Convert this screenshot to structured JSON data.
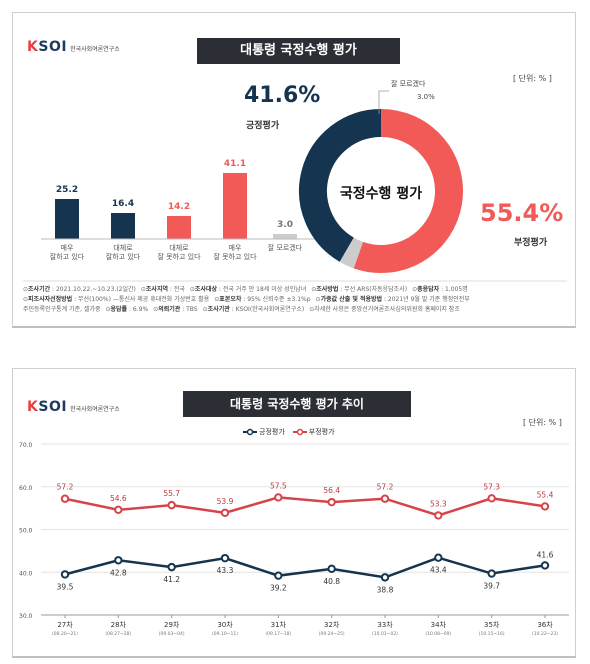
{
  "logo": {
    "mark_k": "K",
    "mark_rest": "SOI",
    "text": "한국사회여론연구소"
  },
  "colors": {
    "navy": "#14344f",
    "red": "#f25a58",
    "gray": "#cccccc",
    "red_line": "#d6444a"
  },
  "panel1": {
    "title": "대통령 국정수행 평가",
    "unit": "[ 단위: % ]",
    "donut": {
      "center_label": "국정수행 평가",
      "positive_pct": "41.6%",
      "positive_label": "긍정평가",
      "negative_pct": "55.4%",
      "negative_label": "부정평가",
      "unknown_label": "잘 모르겠다",
      "unknown_value": "3.0%",
      "values": [
        41.6,
        55.4,
        3.0
      ]
    },
    "bars": [
      {
        "value": 25.2,
        "label": "25.2",
        "category": "매우\n잘하고 있다",
        "color": "navy"
      },
      {
        "value": 16.4,
        "label": "16.4",
        "category": "대체로\n잘하고 있다",
        "color": "navy"
      },
      {
        "value": 14.2,
        "label": "14.2",
        "category": "대체로\n잘 못하고 있다",
        "color": "red"
      },
      {
        "value": 41.1,
        "label": "41.1",
        "category": "매우\n잘 못하고 있다",
        "color": "red"
      },
      {
        "value": 3.0,
        "label": "3.0",
        "category": "잘 모르겠다",
        "color": "gray"
      }
    ],
    "footnote": {
      "line1": [
        {
          "k": "조사기간",
          "v": " : 2021.10.22.~10.23.(2일간)"
        },
        {
          "k": "조사지역",
          "v": " : 전국"
        },
        {
          "k": "조사대상",
          "v": " : 전국 거주 만 18세 이상 성인남녀"
        },
        {
          "k": "조사방법",
          "v": " : 무선 ARS(자동응답조사)"
        },
        {
          "k": "총응답자",
          "v": " : 1,005명"
        }
      ],
      "line2": [
        {
          "k": "피조사자선정방법",
          "v": " : 무선(100%) —통신사 제공 휴대전화 가상번호 활용"
        },
        {
          "k": "표본오차",
          "v": " : 95% 신뢰수준 ±3.1%p"
        },
        {
          "k": "가중값 산출 및 적용방법",
          "v": " : 2021년 9월 말 기준 행정안전부"
        }
      ],
      "line3": [
        {
          "k": "",
          "v": "주민등록인구통계 기준, 셀가중"
        },
        {
          "k": "응답률",
          "v": " : 6.9%"
        },
        {
          "k": "의뢰기관",
          "v": " : TBS"
        },
        {
          "k": "조사기관",
          "v": " : KSOI(한국사회여론연구소)"
        },
        {
          "k": "",
          "v": "자세한 사항은 중앙선거여론조사심의위원회 홈페이지 참조"
        }
      ]
    }
  },
  "panel2": {
    "title": "대통령 국정수행 평가 추이",
    "unit": "[ 단위: % ]",
    "legend": {
      "positive": "긍정평가",
      "negative": "부정평가"
    }
  },
  "chart_data": [
    {
      "type": "bar",
      "title": "대통령 국정수행 평가",
      "categories": [
        "매우 잘하고 있다",
        "대체로 잘하고 있다",
        "대체로 잘 못하고 있다",
        "매우 잘 못하고 있다",
        "잘 모르겠다"
      ],
      "values": [
        25.2,
        16.4,
        14.2,
        41.1,
        3.0
      ],
      "ylim": [
        0,
        45
      ]
    },
    {
      "type": "pie",
      "title": "국정수행 평가",
      "categories": [
        "긍정평가",
        "부정평가",
        "잘 모르겠다"
      ],
      "values": [
        41.6,
        55.4,
        3.0
      ]
    },
    {
      "type": "line",
      "title": "대통령 국정수행 평가 추이",
      "categories": [
        "27차",
        "28차",
        "29차",
        "30차",
        "31차",
        "32차",
        "33차",
        "34차",
        "35차",
        "36차"
      ],
      "dates": [
        "(08.20~21)",
        "(08.27~28)",
        "(09.03~04)",
        "(09.10~11)",
        "(09.17~18)",
        "(09.24~25)",
        "(10.01~02)",
        "(10.08~09)",
        "(10.15~16)",
        "(10.22~23)"
      ],
      "series": [
        {
          "name": "긍정평가",
          "values": [
            39.5,
            42.8,
            41.2,
            43.3,
            39.2,
            40.8,
            38.8,
            43.4,
            39.7,
            41.6
          ]
        },
        {
          "name": "부정평가",
          "values": [
            57.2,
            54.6,
            55.7,
            53.9,
            57.5,
            56.4,
            57.2,
            53.3,
            57.3,
            55.4
          ]
        }
      ],
      "yticks": [
        "30.0",
        "40.0",
        "50.0",
        "60.0",
        "70.0"
      ],
      "ylim": [
        30,
        70
      ],
      "grid": true,
      "legend_position": "top-center"
    }
  ]
}
